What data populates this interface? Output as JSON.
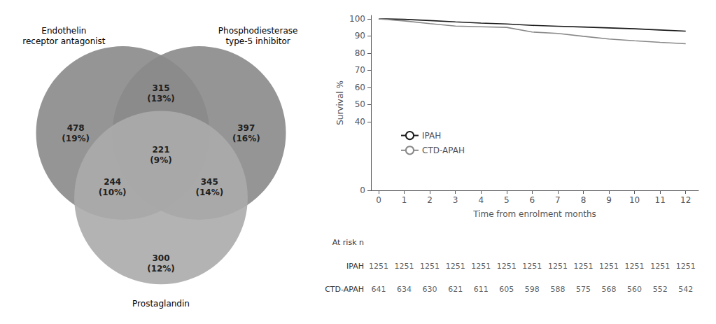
{
  "chart_data": [
    {
      "type": "venn",
      "sets": [
        "Endothelin\nreceptor antagonist",
        "Phosphodiesterase\ntype-5 inhibitor",
        "Prostaglandin"
      ],
      "colors": [
        "#8a8a8a",
        "#8a8a8a",
        "#ababab"
      ],
      "regions": [
        [
          0
        ],
        [
          1
        ],
        [
          0,
          1
        ],
        [
          0,
          1,
          2
        ],
        [
          0,
          2
        ],
        [
          1,
          2
        ],
        [
          2
        ]
      ],
      "values": [
        478,
        397,
        315,
        221,
        244,
        345,
        300
      ],
      "value_labels": [
        "478\n(19%)",
        "397\n(16%)",
        "315\n(13%)",
        "221\n(9%)",
        "244\n(10%)",
        "345\n(14%)",
        "300\n(12%)"
      ]
    },
    {
      "type": "line",
      "x": [
        0,
        1,
        2,
        3,
        4,
        5,
        6,
        7,
        8,
        9,
        10,
        11,
        12
      ],
      "series": [
        {
          "name": "IPAH",
          "color": "#1a1a1a",
          "values": [
            100.0,
            99.7,
            99.0,
            98.2,
            97.5,
            97.0,
            96.2,
            95.7,
            95.2,
            94.7,
            94.2,
            93.5,
            92.8
          ],
          "at_risk": [
            1251,
            1251,
            1251,
            1251,
            1251,
            1251,
            1251,
            1251,
            1251,
            1251,
            1251,
            1251,
            1251
          ]
        },
        {
          "name": "CTD-APAH",
          "color": "#888888",
          "values": [
            100.0,
            98.8,
            97.2,
            95.8,
            95.4,
            95.0,
            92.3,
            91.5,
            89.8,
            88.2,
            87.2,
            86.3,
            85.5
          ],
          "at_risk": [
            641,
            634,
            630,
            621,
            611,
            605,
            598,
            588,
            575,
            568,
            560,
            552,
            542
          ]
        }
      ],
      "xlabel": "Time from enrolment months",
      "ylabel": "Survival %",
      "xlim": [
        -0.3,
        12.5
      ],
      "xticks": [
        0,
        1,
        2,
        3,
        4,
        5,
        6,
        7,
        8,
        9,
        10,
        11,
        12
      ],
      "ylim": [
        0,
        102
      ],
      "yticks": [
        0,
        40,
        50,
        60,
        70,
        80,
        90,
        100
      ],
      "grid": false,
      "legend": "lower left",
      "at_risk_label": "At risk n"
    }
  ]
}
